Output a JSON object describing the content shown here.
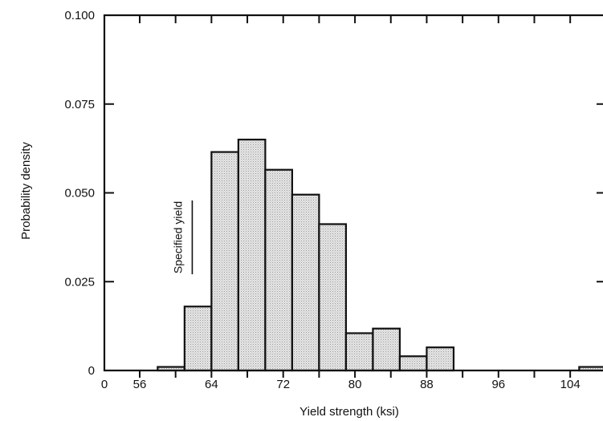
{
  "chart_data": {
    "type": "bar",
    "xlabel": "Yield strength (ksi)",
    "ylabel": "Probability density",
    "xlim": [
      0,
      108
    ],
    "ylim": [
      0,
      0.1
    ],
    "x_tick_labels": [
      "0",
      "56",
      "64",
      "72",
      "80",
      "88",
      "96",
      "104"
    ],
    "y_tick_labels": [
      "0",
      "0.025",
      "0.050",
      "0.075",
      "0.100"
    ],
    "bin_width": 3,
    "bars": [
      {
        "x_start": 58,
        "value": 0.001
      },
      {
        "x_start": 61,
        "value": 0.018
      },
      {
        "x_start": 64,
        "value": 0.0615
      },
      {
        "x_start": 67,
        "value": 0.065
      },
      {
        "x_start": 70,
        "value": 0.0565
      },
      {
        "x_start": 73,
        "value": 0.0495
      },
      {
        "x_start": 76,
        "value": 0.0412
      },
      {
        "x_start": 79,
        "value": 0.0105
      },
      {
        "x_start": 82,
        "value": 0.0118
      },
      {
        "x_start": 85,
        "value": 0.004
      },
      {
        "x_start": 88,
        "value": 0.0065
      },
      {
        "x_start": 105,
        "value": 0.001
      }
    ],
    "annotation": {
      "text": "Specified yield",
      "x": 61.5
    },
    "grid": false,
    "legend": "none"
  }
}
